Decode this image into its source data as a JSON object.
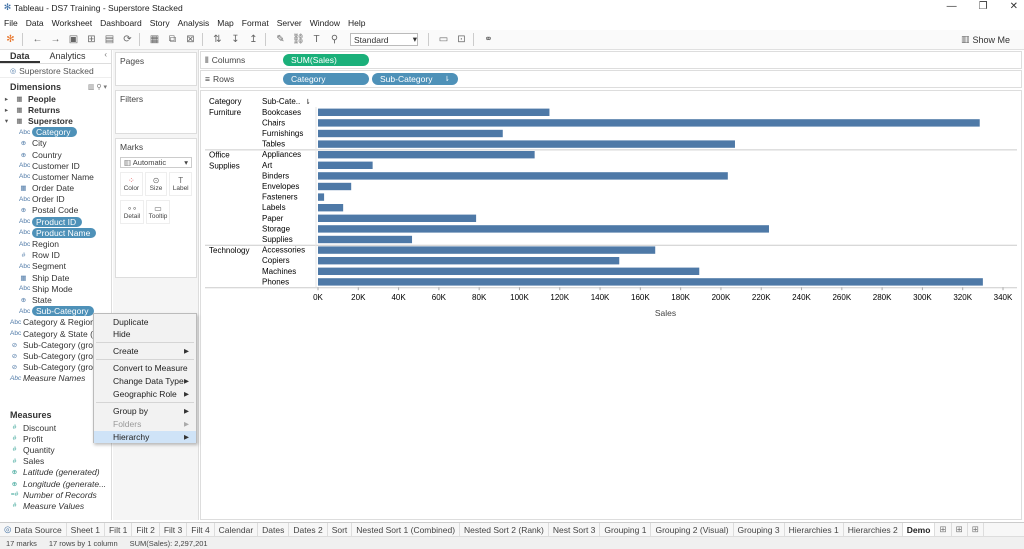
{
  "window": {
    "title": "Tableau - DS7 Training - Superstore Stacked"
  },
  "menu": [
    "File",
    "Data",
    "Worksheet",
    "Dashboard",
    "Story",
    "Analysis",
    "Map",
    "Format",
    "Server",
    "Window",
    "Help"
  ],
  "toolbar": {
    "view_select": "Standard",
    "show_me": "Show Me"
  },
  "datapane": {
    "tabs": [
      "Data",
      "Analytics"
    ],
    "source": "Superstore Stacked",
    "dimensions_title": "Dimensions",
    "measures_title": "Measures",
    "groups": [
      "People",
      "Returns",
      "Superstore"
    ],
    "dimensions": [
      {
        "label": "Category",
        "icon": "Abc",
        "pill": true
      },
      {
        "label": "City",
        "icon": "globe",
        "pill": false
      },
      {
        "label": "Country",
        "icon": "globe",
        "pill": false
      },
      {
        "label": "Customer ID",
        "icon": "Abc",
        "pill": false
      },
      {
        "label": "Customer Name",
        "icon": "Abc",
        "pill": false
      },
      {
        "label": "Order Date",
        "icon": "date",
        "pill": false
      },
      {
        "label": "Order ID",
        "icon": "Abc",
        "pill": false
      },
      {
        "label": "Postal Code",
        "icon": "globe",
        "pill": false
      },
      {
        "label": "Product ID",
        "icon": "Abc",
        "pill": true
      },
      {
        "label": "Product Name",
        "icon": "Abc",
        "pill": true
      },
      {
        "label": "Region",
        "icon": "Abc",
        "pill": false
      },
      {
        "label": "Row ID",
        "icon": "#",
        "pill": false
      },
      {
        "label": "Segment",
        "icon": "Abc",
        "pill": false
      },
      {
        "label": "Ship Date",
        "icon": "date",
        "pill": false
      },
      {
        "label": "Ship Mode",
        "icon": "Abc",
        "pill": false
      },
      {
        "label": "State",
        "icon": "globe",
        "pill": false
      },
      {
        "label": "Sub-Category",
        "icon": "Abc",
        "pill": true
      }
    ],
    "extra_dimensions": [
      {
        "label": "Category & Region",
        "icon": "Abc",
        "italic": false
      },
      {
        "label": "Category & State (",
        "icon": "Abc",
        "italic": false
      },
      {
        "label": "Sub-Category (gro",
        "icon": "clip",
        "italic": false
      },
      {
        "label": "Sub-Category (gro",
        "icon": "clip",
        "italic": false
      },
      {
        "label": "Sub-Category (gro",
        "icon": "clip",
        "italic": false
      },
      {
        "label": "Measure Names",
        "icon": "Abc",
        "italic": true
      }
    ],
    "measures": [
      {
        "label": "Discount",
        "icon": "#",
        "italic": false
      },
      {
        "label": "Profit",
        "icon": "#",
        "italic": false
      },
      {
        "label": "Quantity",
        "icon": "#",
        "italic": false
      },
      {
        "label": "Sales",
        "icon": "#",
        "italic": false
      },
      {
        "label": "Latitude (generated)",
        "icon": "globe",
        "italic": true
      },
      {
        "label": "Longitude (generate...",
        "icon": "globe",
        "italic": true
      },
      {
        "label": "Number of Records",
        "icon": "=#",
        "italic": true
      },
      {
        "label": "Measure Values",
        "icon": "#",
        "italic": true
      }
    ]
  },
  "cards": {
    "pages": "Pages",
    "filters": "Filters",
    "marks": "Marks",
    "mark_type": "Automatic",
    "mark_buttons": [
      "Color",
      "Size",
      "Label",
      "Detail",
      "Tooltip"
    ]
  },
  "shelves": {
    "columns_label": "Columns",
    "rows_label": "Rows",
    "columns_pills": [
      "SUM(Sales)"
    ],
    "rows_pills": [
      "Category",
      "Sub-Category"
    ]
  },
  "context_menu": {
    "items": [
      "Duplicate",
      "Hide",
      "Create",
      "Convert to Measure",
      "Change Data Type",
      "Geographic Role",
      "Group by",
      "Folders",
      "Hierarchy"
    ]
  },
  "chart_data": {
    "type": "bar",
    "orientation": "horizontal",
    "row_headers": [
      "Category",
      "Sub-Cate.."
    ],
    "xlabel": "Sales",
    "xlim": [
      0,
      340000
    ],
    "xticks": [
      "0K",
      "20K",
      "40K",
      "60K",
      "80K",
      "100K",
      "120K",
      "140K",
      "160K",
      "180K",
      "200K",
      "220K",
      "240K",
      "260K",
      "280K",
      "300K",
      "320K",
      "340K"
    ],
    "color": "#4e79a7",
    "groups": [
      {
        "category": "Furniture",
        "items": [
          {
            "label": "Bookcases",
            "value": 114880
          },
          {
            "label": "Chairs",
            "value": 328449
          },
          {
            "label": "Furnishings",
            "value": 91705
          },
          {
            "label": "Tables",
            "value": 206966
          }
        ]
      },
      {
        "category": "Office Supplies",
        "items": [
          {
            "label": "Appliances",
            "value": 107532
          },
          {
            "label": "Art",
            "value": 27119
          },
          {
            "label": "Binders",
            "value": 203413
          },
          {
            "label": "Envelopes",
            "value": 16476
          },
          {
            "label": "Fasteners",
            "value": 3024
          },
          {
            "label": "Labels",
            "value": 12486
          },
          {
            "label": "Paper",
            "value": 78479
          },
          {
            "label": "Storage",
            "value": 223844
          },
          {
            "label": "Supplies",
            "value": 46674
          }
        ]
      },
      {
        "category": "Technology",
        "items": [
          {
            "label": "Accessories",
            "value": 167380
          },
          {
            "label": "Copiers",
            "value": 149528
          },
          {
            "label": "Machines",
            "value": 189239
          },
          {
            "label": "Phones",
            "value": 330007
          }
        ]
      }
    ]
  },
  "sheet_tabs": {
    "data_source": "Data Source",
    "tabs": [
      "Sheet 1",
      "Filt 1",
      "Filt 2",
      "Filt 3",
      "Filt 4",
      "Calendar",
      "Dates",
      "Dates 2",
      "Sort",
      "Nested Sort 1 (Combined)",
      "Nested Sort 2 (Rank)",
      "Nest Sort 3",
      "Grouping 1",
      "Grouping 2 (Visual)",
      "Grouping 3",
      "Hierarchies 1",
      "Hierarchies 2",
      "Demo"
    ],
    "active": "Demo"
  },
  "status": {
    "marks": "17 marks",
    "rows": "17 rows by 1 column",
    "sum": "SUM(Sales): 2,297,201"
  }
}
